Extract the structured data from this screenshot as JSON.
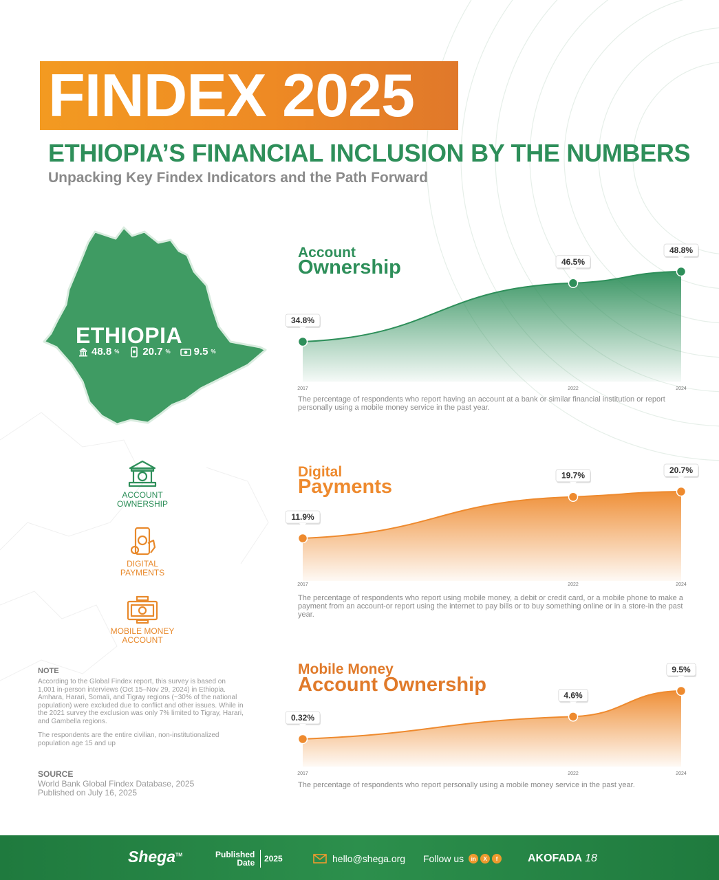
{
  "header": {
    "title": "FINDEX 2025",
    "subtitle": "ETHIOPIA’S FINANCIAL INCLUSION BY THE NUMBERS",
    "tagline": "Unpacking Key Findex Indicators and the Path Forward"
  },
  "map": {
    "country": "ETHIOPIA",
    "stats": [
      {
        "icon": "bank-icon",
        "value": "48.8",
        "unit": "%"
      },
      {
        "icon": "phone-payment-icon",
        "value": "20.7",
        "unit": "%"
      },
      {
        "icon": "money-icon",
        "value": "9.5",
        "unit": "%"
      }
    ]
  },
  "legend": [
    {
      "line1": "ACCOUNT",
      "line2": "OWNERSHIP",
      "icon": "bank-icon",
      "color": "#2e8f5a"
    },
    {
      "line1": "DIGITAL",
      "line2": "PAYMENTS",
      "icon": "phone-payment-icon",
      "color": "#e8892b"
    },
    {
      "line1": "MOBILE MONEY",
      "line2": "ACCOUNT",
      "icon": "money-icon",
      "color": "#e8892b"
    }
  ],
  "note": {
    "heading": "NOTE",
    "text1": "According to the Global Findex report, this survey is based on 1,001 in-person interviews (Oct 15–Nov 29, 2024) in Ethiopia. Amhara, Harari, Somali, and Tigray regions (~30% of the national population) were excluded due to conflict and other issues. While in the 2021 survey the exclusion was only 7% limited to Tigray, Harari, and Gambella regions.",
    "text2": "The respondents are the entire civilian, non-institutionalized population age 15 and up"
  },
  "source": {
    "heading": "SOURCE",
    "line1": "World Bank Global Findex Database, 2025",
    "line2": "Published on July 16, 2025"
  },
  "chart_data": [
    {
      "type": "area",
      "title_line1": "Account",
      "title_line2": "Ownership",
      "color": "#2e8f5a",
      "x": [
        "2017",
        "2022",
        "2024"
      ],
      "values": [
        34.8,
        46.5,
        48.8
      ],
      "labels": [
        "34.8%",
        "46.5%",
        "48.8%"
      ],
      "description": "The percentage of respondents who report having an account at a bank or similar financial institution or report personally using a mobile money service in the past year."
    },
    {
      "type": "area",
      "title_line1": "Digital",
      "title_line2": "Payments",
      "color": "#ee8a2e",
      "x": [
        "2017",
        "2022",
        "2024"
      ],
      "values": [
        11.9,
        19.7,
        20.7
      ],
      "labels": [
        "11.9%",
        "19.7%",
        "20.7%"
      ],
      "description": "The percentage of respondents who report using mobile money, a debit or credit card, or a mobile phone to make a payment from an account-or report using the internet to pay bills or to buy something online or in a store-in the past year."
    },
    {
      "type": "area",
      "title_line1": "Mobile Money",
      "title_line2": "Account Ownership",
      "color": "#ee8a2e",
      "x": [
        "2017",
        "2022",
        "2024"
      ],
      "values": [
        0.32,
        4.6,
        9.5
      ],
      "labels": [
        "0.32%",
        "4.6%",
        "9.5%"
      ],
      "description": "The percentage of respondents who report personally using a mobile money service in the past year."
    }
  ],
  "footer": {
    "logo": "Shega",
    "logo_tm": "TM",
    "published_line1": "Published",
    "published_line2": "Date",
    "year": "2025",
    "email": "hello@shega.org",
    "follow": "Follow us",
    "social": [
      "in",
      "X",
      "f"
    ],
    "brand": "AKOFADA",
    "brand_num": "18"
  }
}
